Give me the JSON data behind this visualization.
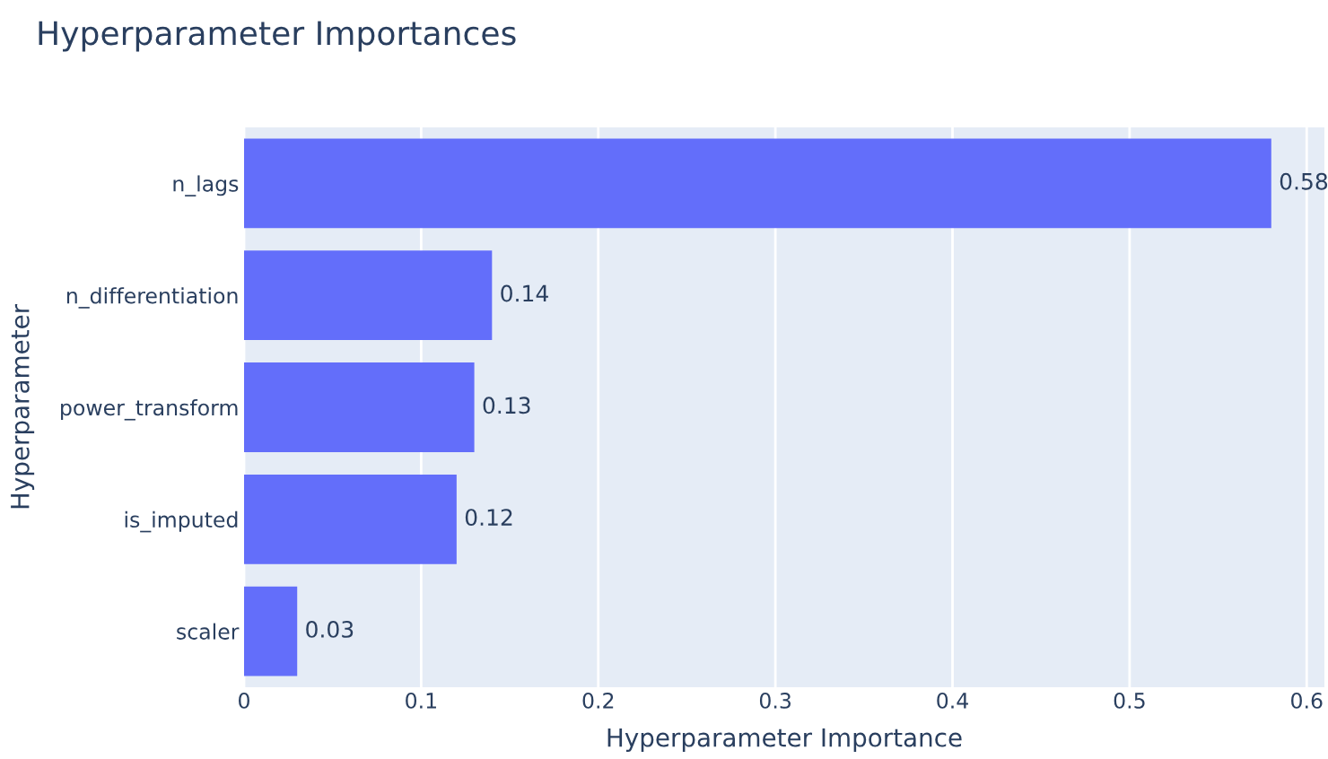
{
  "chart_data": {
    "type": "bar",
    "orientation": "horizontal",
    "title": "Hyperparameter Importances",
    "xlabel": "Hyperparameter Importance",
    "ylabel": "Hyperparameter",
    "categories": [
      "n_lags",
      "n_differentiation",
      "power_transform",
      "is_imputed",
      "scaler"
    ],
    "values": [
      0.58,
      0.14,
      0.13,
      0.12,
      0.03
    ],
    "color": "#636efa",
    "xlim": [
      0,
      0.61
    ],
    "xticks": [
      0,
      0.1,
      0.2,
      0.3,
      0.4,
      0.5,
      0.6
    ],
    "grid": "x",
    "data_labels": true
  }
}
